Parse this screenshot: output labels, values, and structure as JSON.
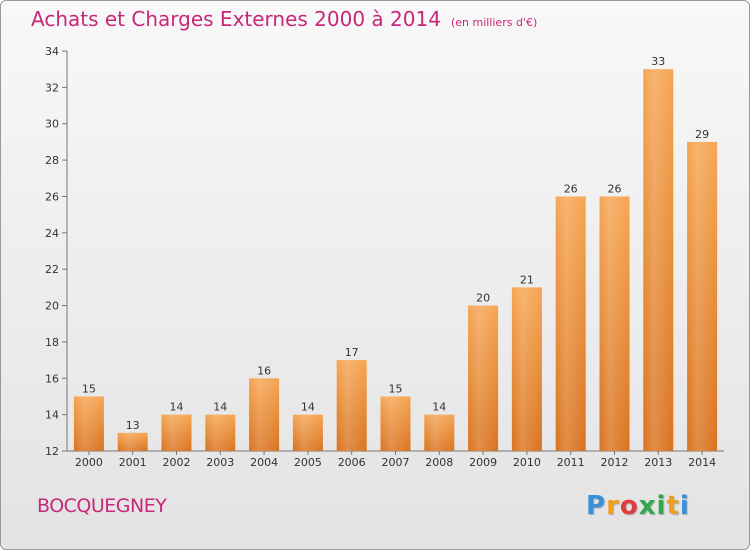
{
  "header": {
    "title": "Achats et Charges Externes 2000 à 2014",
    "subtitle": "(en milliers d'€)"
  },
  "footer": {
    "commune": "BOCQUEGNEY",
    "logo_letters": [
      "P",
      "r",
      "o",
      "x",
      "i",
      "t",
      "i"
    ],
    "logo_colors": [
      "#3a8fd8",
      "#f0a020",
      "#e03b3b",
      "#2fa84f",
      "#2fa84f",
      "#f0a020",
      "#3a8fd8"
    ]
  },
  "colors": {
    "bar_top": "#f6a552",
    "bar_bottom": "#d9731f",
    "title": "#c8287a"
  },
  "chart_data": {
    "type": "bar",
    "title": "Achats et Charges Externes 2000 à 2014",
    "subtitle": "(en milliers d'€)",
    "categories": [
      "2000",
      "2001",
      "2002",
      "2003",
      "2004",
      "2005",
      "2006",
      "2007",
      "2008",
      "2009",
      "2010",
      "2011",
      "2012",
      "2013",
      "2014"
    ],
    "values": [
      15,
      13,
      14,
      14,
      16,
      14,
      17,
      15,
      14,
      20,
      21,
      26,
      26,
      33,
      29
    ],
    "ylim": [
      12,
      34
    ],
    "yticks": [
      12,
      14,
      16,
      18,
      20,
      22,
      24,
      26,
      28,
      30,
      32,
      34
    ],
    "xlabel": "",
    "ylabel": "",
    "grid": false,
    "data_labels": true
  }
}
